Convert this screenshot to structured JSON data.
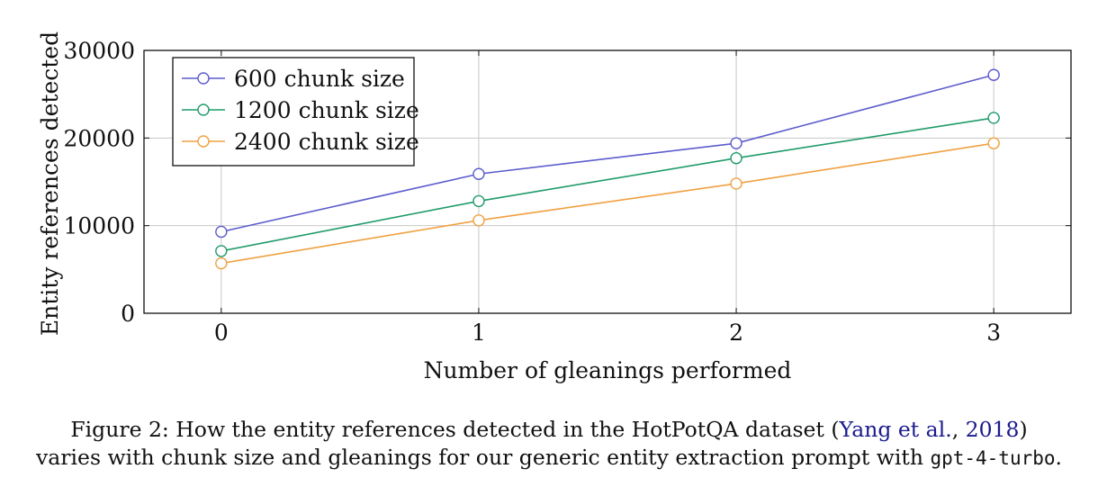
{
  "chart_data": {
    "type": "line",
    "x": [
      0,
      1,
      2,
      3
    ],
    "xlabel": "Number of gleanings performed",
    "ylabel": "Entity references detected",
    "xlim": [
      -0.3,
      3.3
    ],
    "ylim": [
      0,
      30000
    ],
    "xticks": [
      0,
      1,
      2,
      3
    ],
    "yticks": [
      0,
      10000,
      20000,
      30000
    ],
    "grid": true,
    "legend_position": "top-left",
    "series": [
      {
        "name": "600 chunk size",
        "color": "#5c5ccc",
        "values": [
          9300,
          15900,
          19400,
          27200
        ]
      },
      {
        "name": "1200 chunk size",
        "color": "#1f9b6a",
        "values": [
          7100,
          12800,
          17700,
          22300
        ]
      },
      {
        "name": "2400 chunk size",
        "color": "#f0a040",
        "values": [
          5700,
          10600,
          14800,
          19400
        ]
      }
    ]
  },
  "caption": {
    "prefix": "Figure 2: How the entity references detected in the HotPotQA dataset (",
    "cite_author": "Yang et al.",
    "cite_sep": ", ",
    "cite_year": "2018",
    "suffix": ")",
    "line2": "varies with chunk size and gleanings for our generic entity extraction prompt with ",
    "code": "gpt-4-turbo",
    "end": "."
  }
}
